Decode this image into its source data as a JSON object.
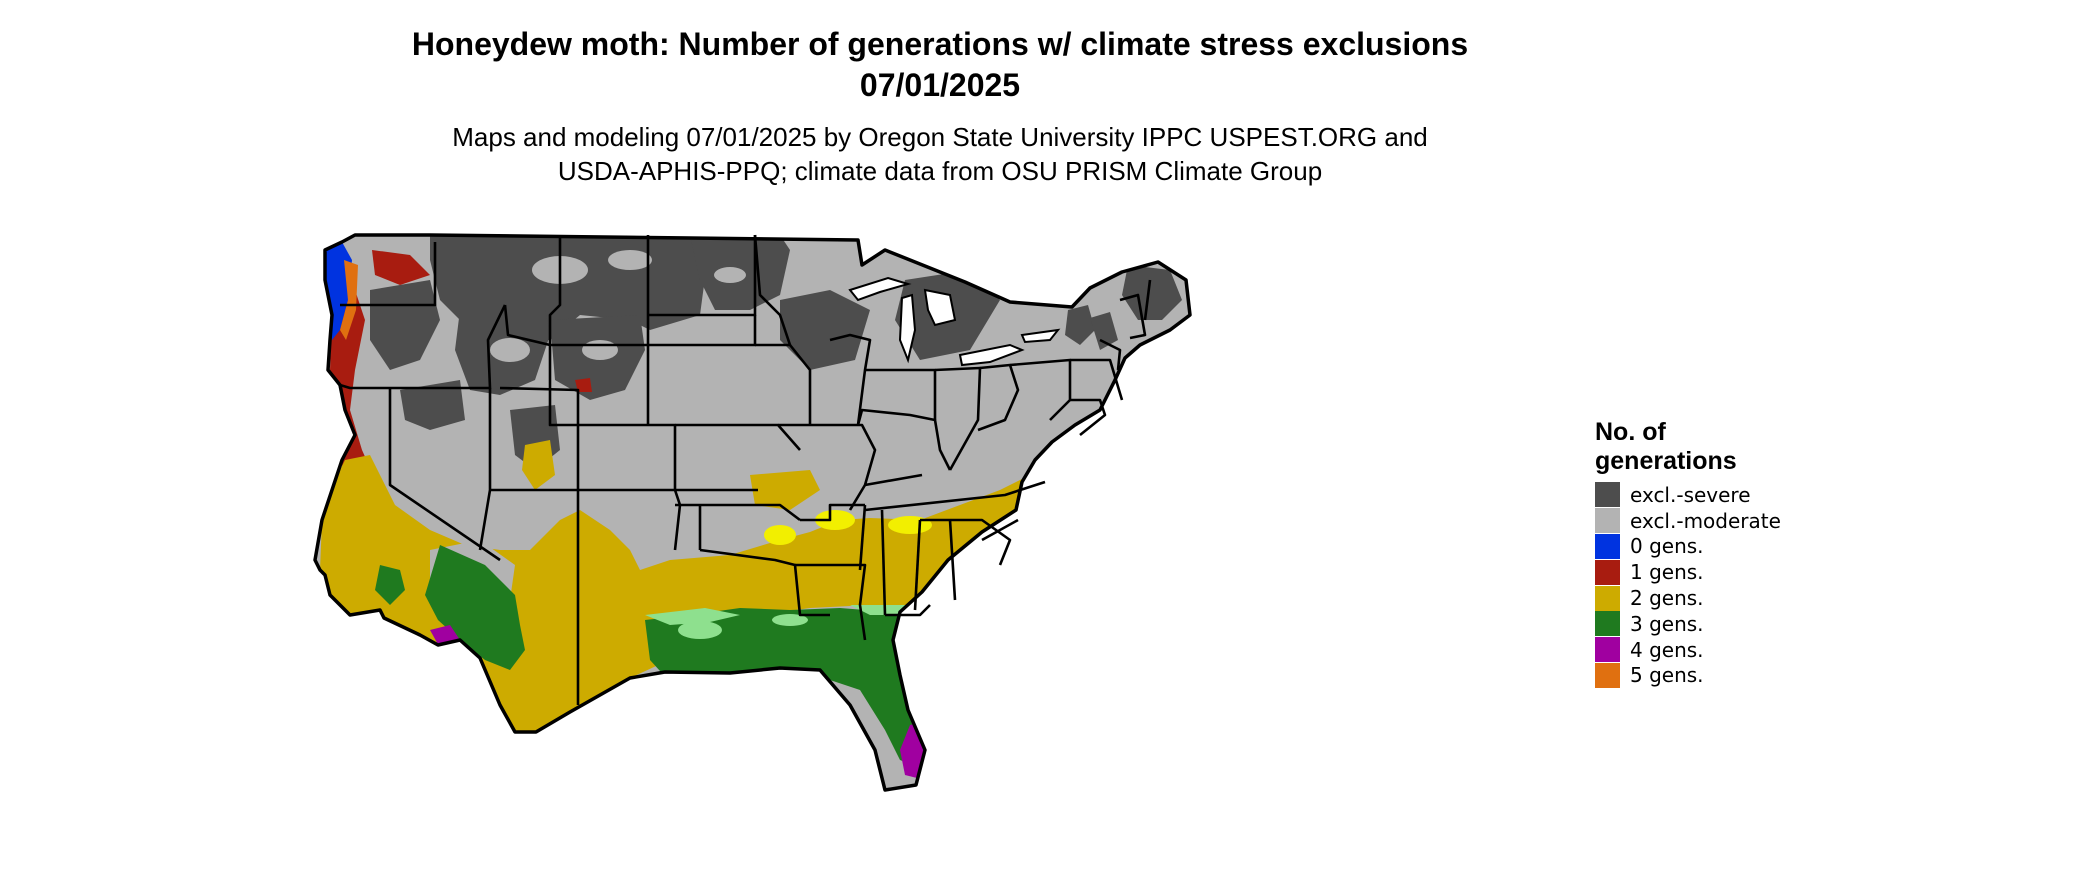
{
  "title": {
    "line1": "Honeydew moth: Number of generations w/ climate stress exclusions",
    "line2": "07/01/2025"
  },
  "subtitle": {
    "line1": "Maps and modeling 07/01/2025 by Oregon State University IPPC USPEST.ORG and",
    "line2": "USDA-APHIS-PPQ; climate data from OSU PRISM Climate Group"
  },
  "legend": {
    "title": "No. of generations",
    "items": [
      {
        "label": "excl.-severe",
        "color": "#4d4d4d"
      },
      {
        "label": "excl.-moderate",
        "color": "#b3b3b3"
      },
      {
        "label": "0 gens.",
        "color": "#0033e0"
      },
      {
        "label": "1 gens.",
        "color": "#a81c10"
      },
      {
        "label": "2 gens.",
        "color": "#cdab00"
      },
      {
        "label": "3 gens.",
        "color": "#1f7a1f"
      },
      {
        "label": "4 gens.",
        "color": "#a000a0"
      },
      {
        "label": "5 gens.",
        "color": "#e07010"
      }
    ]
  },
  "map_colors": {
    "light_green": "#8ee08e",
    "yellow": "#f2ef00",
    "magenta": "#e040e0",
    "border": "#000000",
    "water": "#ffffff"
  }
}
